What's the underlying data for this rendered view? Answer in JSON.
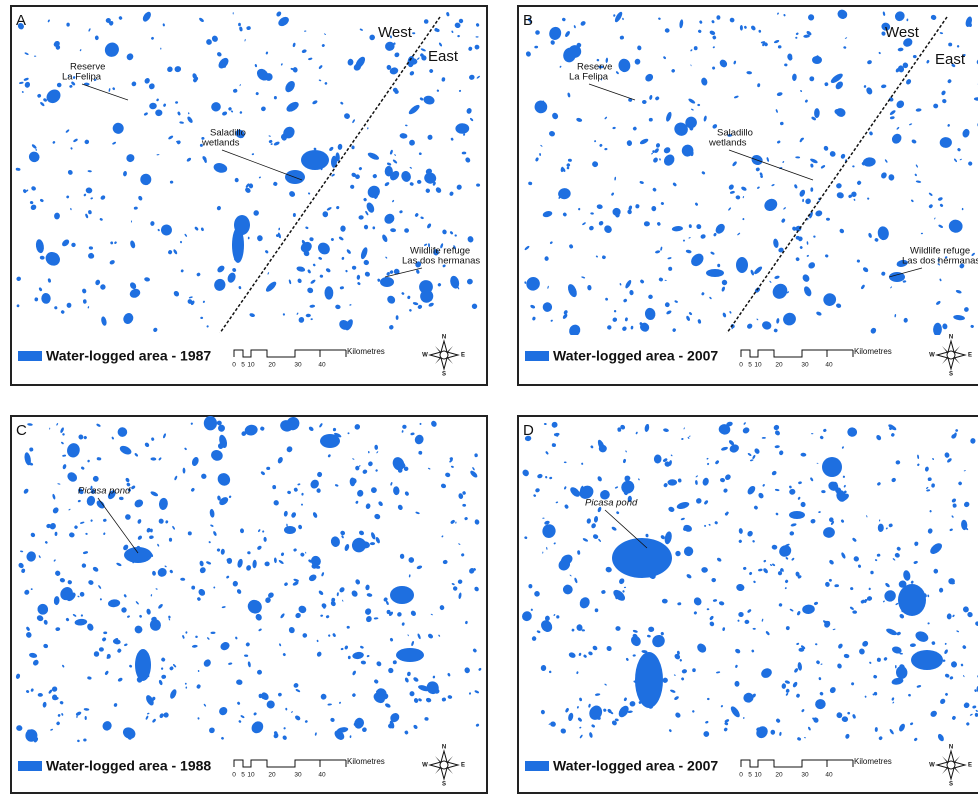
{
  "panels": [
    {
      "letter": "A",
      "directions": [
        "West",
        "East"
      ],
      "labels": [
        {
          "lines": [
            "Reserve",
            "La Felipa"
          ]
        },
        {
          "lines": [
            "Saladillo",
            "wetlands"
          ]
        },
        {
          "lines": [
            "Wildlife refuge",
            "Las dos hermanas"
          ]
        }
      ],
      "legend": "Water-logged area - 1987",
      "scale": {
        "ticks": [
          0,
          5,
          10,
          20,
          30,
          40
        ],
        "unit": "Kilometres"
      },
      "compass": {
        "n": "N",
        "e": "E",
        "s": "S",
        "w": "W"
      }
    },
    {
      "letter": "B",
      "directions": [
        "West",
        "East"
      ],
      "labels": [
        {
          "lines": [
            "Reserve",
            "La Felipa"
          ]
        },
        {
          "lines": [
            "Saladillo",
            "wetlands"
          ]
        },
        {
          "lines": [
            "Wildlife refuge",
            "Las dos hermanas"
          ]
        }
      ],
      "legend": "Water-logged area - 2007",
      "scale": {
        "ticks": [
          0,
          5,
          10,
          20,
          30,
          40
        ],
        "unit": "Kilometres"
      },
      "compass": {
        "n": "N",
        "e": "E",
        "s": "S",
        "w": "W"
      }
    },
    {
      "letter": "C",
      "directions": [],
      "labels": [
        {
          "lines": [
            "Picasa pond"
          ]
        }
      ],
      "legend": "Water-logged area - 1988",
      "scale": {
        "ticks": [
          0,
          5,
          10,
          20,
          30,
          40
        ],
        "unit": "Kilometres"
      },
      "compass": {
        "n": "N",
        "e": "E",
        "s": "S",
        "w": "W"
      }
    },
    {
      "letter": "D",
      "directions": [],
      "labels": [
        {
          "lines": [
            "Picasa pond"
          ]
        }
      ],
      "legend": "Water-logged area - 2007",
      "scale": {
        "ticks": [
          0,
          5,
          10,
          20,
          30,
          40
        ],
        "unit": "Kilometres"
      },
      "compass": {
        "n": "N",
        "e": "E",
        "s": "S",
        "w": "W"
      }
    }
  ]
}
